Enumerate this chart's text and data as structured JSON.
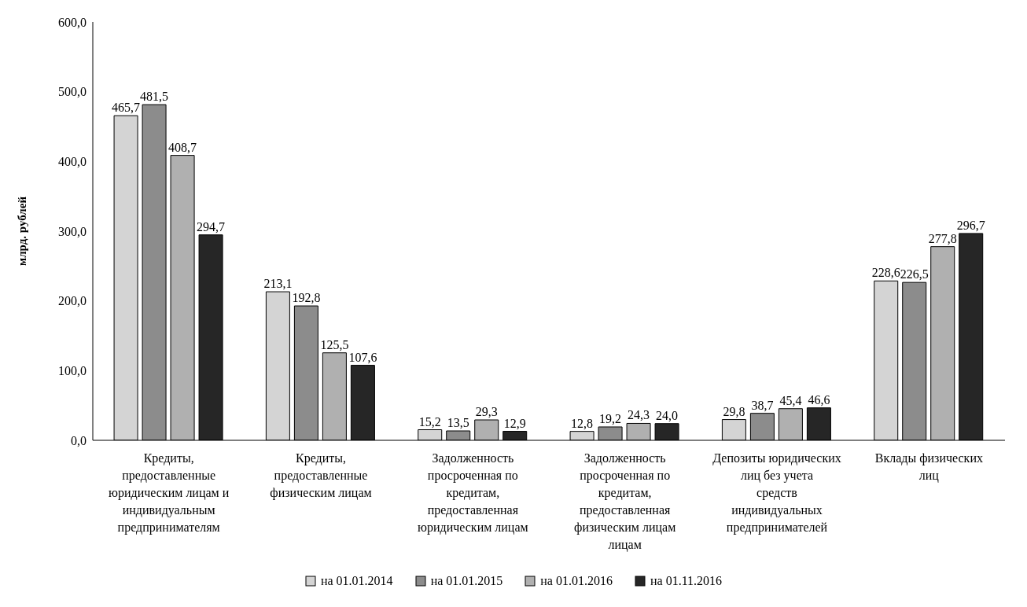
{
  "chart_data": {
    "type": "bar",
    "ylabel": "млрд. рублей",
    "categories": [
      "Кредиты, предоставленные юридическим лицам и индивидуальным предпринимателям",
      "Кредиты, предоставленные физическим лицам",
      "Задолженность просроченная по кредитам, предоставленная юридическим лицам",
      "Задолженность просроченная по кредитам, предоставленная физическим лицам лицам",
      "Депозиты юридических лиц без учета средств индивидуальных предпринимателей",
      "Вклады физических лиц"
    ],
    "series": [
      {
        "name": "на 01.01.2014",
        "color": "#d4d4d4",
        "values": [
          465.7,
          213.1,
          15.2,
          12.8,
          29.8,
          228.6
        ],
        "value_labels": [
          "465,7",
          "213,1",
          "15,2",
          "12,8",
          "29,8",
          "228,6"
        ]
      },
      {
        "name": "на 01.01.2015",
        "color": "#8c8c8c",
        "values": [
          481.5,
          192.8,
          13.5,
          19.2,
          38.7,
          226.5
        ],
        "value_labels": [
          "481,5",
          "192,8",
          "13,5",
          "19,2",
          "38,7",
          "226,5"
        ]
      },
      {
        "name": "на 01.01.2016",
        "color": "#b0b0b0",
        "values": [
          408.7,
          125.5,
          29.3,
          24.3,
          45.4,
          277.8
        ],
        "value_labels": [
          "408,7",
          "125,5",
          "29,3",
          "24,3",
          "45,4",
          "277,8"
        ]
      },
      {
        "name": "на 01.11.2016",
        "color": "#262626",
        "values": [
          294.7,
          107.6,
          12.9,
          24.0,
          46.6,
          296.7
        ],
        "value_labels": [
          "294,7",
          "107,6",
          "12,9",
          "24,0",
          "46,6",
          "296,7"
        ]
      }
    ],
    "ylim": [
      0,
      600
    ],
    "yticks": [
      {
        "value": 0,
        "label": "0,0"
      },
      {
        "value": 100,
        "label": "100,0"
      },
      {
        "value": 200,
        "label": "200,0"
      },
      {
        "value": 300,
        "label": "300,0"
      },
      {
        "value": 400,
        "label": "400,0"
      },
      {
        "value": 500,
        "label": "500,0"
      },
      {
        "value": 600,
        "label": "600,0"
      }
    ],
    "legend": "bottom"
  }
}
